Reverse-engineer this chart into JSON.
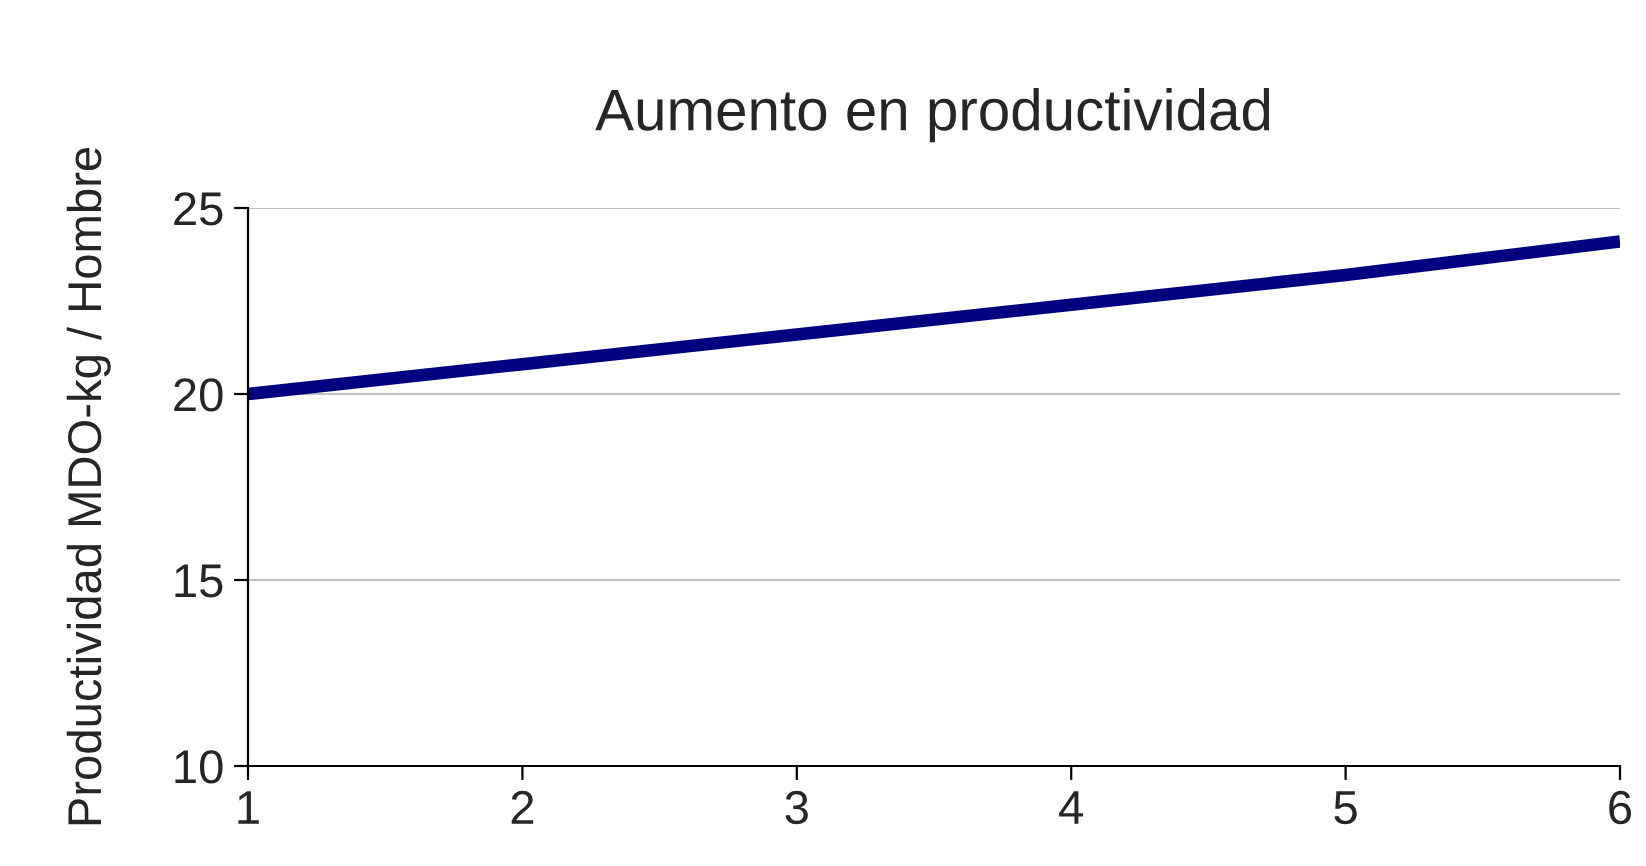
{
  "chart_data": {
    "type": "line",
    "title": "Aumento en productividad",
    "ylabel": "Productividad MDO-kg / Hombre",
    "x": [
      1,
      2,
      3,
      4,
      5,
      6
    ],
    "series": [
      {
        "color": "#000080",
        "values": [
          20.0,
          20.8,
          21.6,
          22.4,
          23.2,
          24.1
        ]
      }
    ],
    "xlim": [
      1,
      6
    ],
    "xticks": [
      1,
      2,
      3,
      4,
      5,
      6
    ],
    "ylim": [
      10,
      25
    ],
    "yticks": [
      10,
      15,
      20,
      25
    ],
    "grid": "y",
    "legend": false,
    "marker": "none",
    "line_style": "solid"
  }
}
